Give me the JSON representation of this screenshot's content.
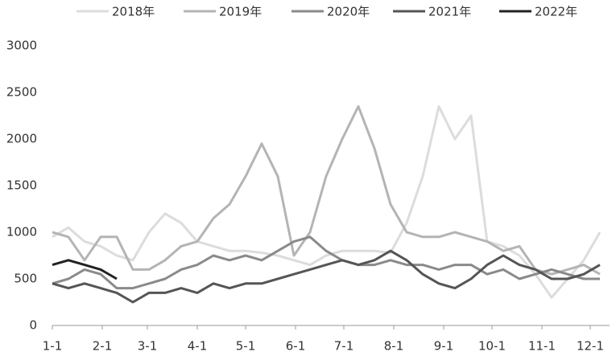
{
  "chart_data": {
    "type": "line",
    "x": [
      1,
      11,
      21,
      31,
      41,
      51,
      61,
      71,
      81,
      91,
      101,
      111,
      121,
      131,
      141,
      151,
      161,
      171,
      181,
      191,
      201,
      211,
      221,
      231,
      241,
      251,
      261,
      271,
      281,
      291,
      301,
      311,
      321,
      331,
      341
    ],
    "xlim": [
      1,
      347
    ],
    "xticks": [
      {
        "value": 1,
        "label": "1-1"
      },
      {
        "value": 32,
        "label": "2-1"
      },
      {
        "value": 60,
        "label": "3-1"
      },
      {
        "value": 91,
        "label": "4-1"
      },
      {
        "value": 121,
        "label": "5-1"
      },
      {
        "value": 152,
        "label": "6-1"
      },
      {
        "value": 182,
        "label": "7-1"
      },
      {
        "value": 213,
        "label": "8-1"
      },
      {
        "value": 244,
        "label": "9-1"
      },
      {
        "value": 274,
        "label": "10-1"
      },
      {
        "value": 305,
        "label": "11-1"
      },
      {
        "value": 335,
        "label": "12-1"
      }
    ],
    "ylim": [
      0,
      3000
    ],
    "yticks": [
      0,
      500,
      1000,
      1500,
      2000,
      2500,
      3000
    ],
    "series": [
      {
        "name": "2018年",
        "color": "#dcdcdc",
        "values": [
          950,
          1050,
          900,
          850,
          750,
          700,
          1000,
          1200,
          1100,
          900,
          850,
          800,
          800,
          780,
          750,
          700,
          650,
          750,
          800,
          800,
          800,
          780,
          1100,
          1600,
          2350,
          2000,
          2250,
          900,
          850,
          750,
          550,
          300,
          500,
          700,
          1000
        ]
      },
      {
        "name": "2019年",
        "color": "#b4b4b4",
        "values": [
          1000,
          950,
          700,
          950,
          950,
          600,
          600,
          700,
          850,
          900,
          1150,
          1300,
          1600,
          1950,
          1600,
          750,
          1000,
          1600,
          2000,
          2350,
          1900,
          1300,
          1000,
          950,
          950,
          1000,
          950,
          900,
          800,
          850,
          600,
          550,
          600,
          650,
          550
        ]
      },
      {
        "name": "2020年",
        "color": "#8a8a8a",
        "values": [
          450,
          500,
          600,
          550,
          400,
          400,
          450,
          500,
          600,
          650,
          750,
          700,
          750,
          700,
          800,
          900,
          950,
          800,
          700,
          650,
          650,
          700,
          650,
          650,
          600,
          650,
          650,
          550,
          600,
          500,
          550,
          600,
          550,
          500,
          500
        ]
      },
      {
        "name": "2021年",
        "color": "#555555",
        "values": [
          450,
          400,
          450,
          400,
          350,
          250,
          350,
          350,
          400,
          350,
          450,
          400,
          450,
          450,
          500,
          550,
          600,
          650,
          700,
          650,
          700,
          800,
          700,
          550,
          450,
          400,
          500,
          650,
          750,
          650,
          600,
          500,
          500,
          550,
          650
        ]
      },
      {
        "name": "2022年",
        "color": "#222222",
        "values": [
          650,
          700,
          650,
          600,
          500,
          null,
          null,
          null,
          null,
          null,
          null,
          null,
          null,
          null,
          null,
          null,
          null,
          null,
          null,
          null,
          null,
          null,
          null,
          null,
          null,
          null,
          null,
          null,
          null,
          null,
          null,
          null,
          null,
          null,
          null
        ]
      }
    ]
  }
}
